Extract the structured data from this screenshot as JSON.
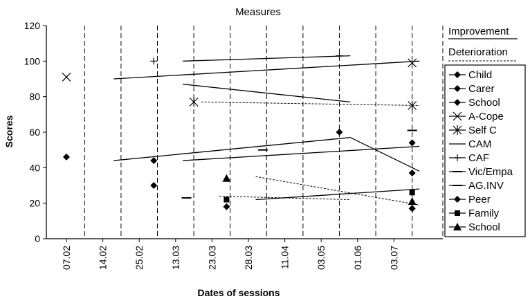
{
  "chart_data": {
    "type": "scatter",
    "title": "Measures",
    "xlabel": "Dates of sessions",
    "ylabel": "Scores",
    "ylim": [
      0,
      120
    ],
    "yticks": [
      0,
      20,
      40,
      60,
      80,
      100,
      120
    ],
    "categories": [
      "07.02",
      "14.02",
      "25.02",
      "13.03",
      "23.03",
      "28.03",
      "11.04",
      "03.05",
      "01.06",
      "03.07"
    ],
    "grid": "vertical dashed",
    "legend_position": "right",
    "annotations": {
      "improvement_label": "Improvement",
      "deterioration_label": "Deterioration"
    },
    "series": [
      {
        "name": "Child",
        "marker": "diamond",
        "points": [
          {
            "x": 0,
            "y": 46
          },
          {
            "x": 7.5,
            "y": 60
          },
          {
            "x": 9.5,
            "y": 54
          }
        ]
      },
      {
        "name": "Carer",
        "marker": "diamond",
        "points": [
          {
            "x": 2.4,
            "y": 44
          },
          {
            "x": 9.5,
            "y": 37
          }
        ]
      },
      {
        "name": "School",
        "marker": "diamond",
        "points": [
          {
            "x": 2.4,
            "y": 30
          },
          {
            "x": 4.4,
            "y": 18
          },
          {
            "x": 9.5,
            "y": 17
          }
        ]
      },
      {
        "name": "A-Cope",
        "marker": "x",
        "points": [
          {
            "x": 0,
            "y": 91
          },
          {
            "x": 9.5,
            "y": 99
          }
        ]
      },
      {
        "name": "Self C",
        "marker": "asterisk",
        "points": [
          {
            "x": 3.5,
            "y": 77
          },
          {
            "x": 9.5,
            "y": 75
          }
        ]
      },
      {
        "name": "CAM",
        "marker": "line",
        "points": []
      },
      {
        "name": "CAF",
        "marker": "plus",
        "points": [
          {
            "x": 2.4,
            "y": 100
          },
          {
            "x": 7.5,
            "y": 103
          }
        ]
      },
      {
        "name": "Vic/Empa",
        "marker": "dash",
        "points": [
          {
            "x": 5.4,
            "y": 50
          },
          {
            "x": 9.5,
            "y": 61
          }
        ]
      },
      {
        "name": "AG.INV",
        "marker": "dash",
        "points": [
          {
            "x": 3.3,
            "y": 23
          }
        ]
      },
      {
        "name": "Peer",
        "marker": "diamond",
        "points": [
          {
            "x": 9.5,
            "y": 17
          }
        ]
      },
      {
        "name": "Family",
        "marker": "square",
        "points": [
          {
            "x": 4.4,
            "y": 22
          },
          {
            "x": 9.5,
            "y": 26
          }
        ]
      },
      {
        "name": "School",
        "marker": "triangle",
        "points": [
          {
            "x": 4.4,
            "y": 34
          },
          {
            "x": 9.5,
            "y": 21
          }
        ]
      }
    ],
    "trend_lines": [
      {
        "style": "solid",
        "from": [
          3.2,
          100
        ],
        "to": [
          7.8,
          103
        ]
      },
      {
        "style": "solid",
        "from": [
          1.3,
          90
        ],
        "to": [
          9.7,
          100
        ]
      },
      {
        "style": "solid",
        "from": [
          3.2,
          87
        ],
        "to": [
          7.8,
          77
        ]
      },
      {
        "style": "dashed",
        "from": [
          3.7,
          77
        ],
        "to": [
          9.7,
          75
        ]
      },
      {
        "style": "solid",
        "from": [
          1.3,
          44
        ],
        "to": [
          7.8,
          57
        ]
      },
      {
        "style": "solid",
        "from": [
          7.8,
          57
        ],
        "to": [
          9.7,
          38
        ]
      },
      {
        "style": "solid",
        "from": [
          3.2,
          44
        ],
        "to": [
          9.7,
          52
        ]
      },
      {
        "style": "dashed",
        "from": [
          5.2,
          35
        ],
        "to": [
          9.7,
          19
        ]
      },
      {
        "style": "dashed",
        "from": [
          4.2,
          24
        ],
        "to": [
          7.8,
          22
        ]
      },
      {
        "style": "solid",
        "from": [
          5.2,
          22
        ],
        "to": [
          9.7,
          28
        ]
      }
    ]
  }
}
